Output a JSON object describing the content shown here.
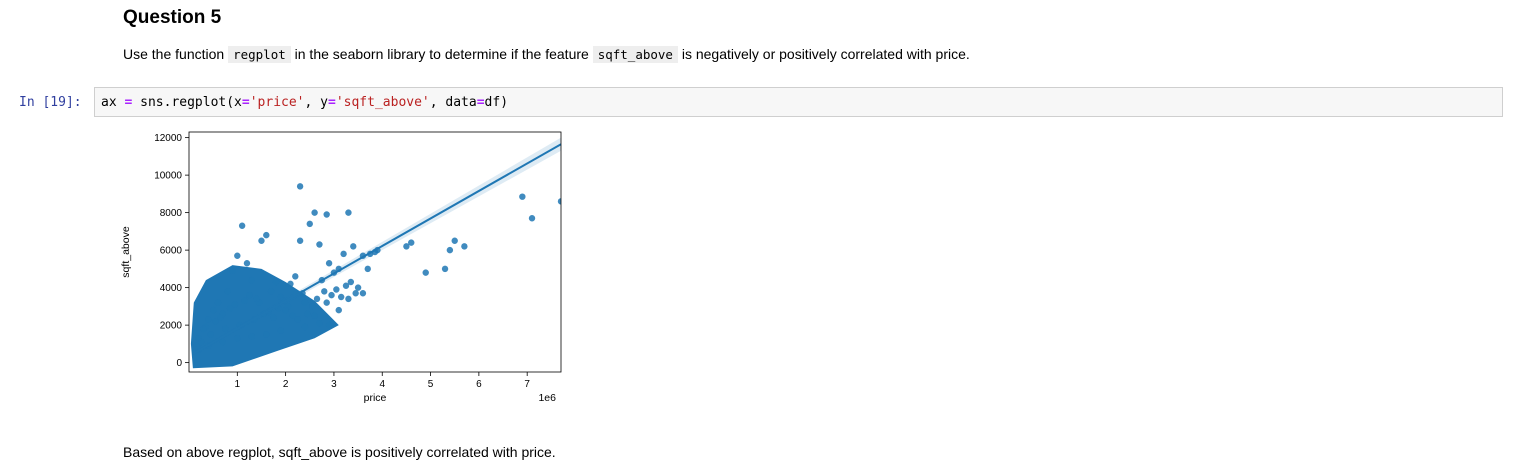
{
  "heading": "Question 5",
  "instruction": {
    "part1": "Use the function ",
    "code1": "regplot",
    "part2": " in the seaborn library to determine if the feature ",
    "code2": "sqft_above",
    "part3": " is negatively or positively correlated with price."
  },
  "cell": {
    "prompt": "In [19]:",
    "code": {
      "t1": "ax ",
      "t2": "=",
      "t3": " sns.regplot(x",
      "t4": "=",
      "t5": "'price'",
      "t6": ", y",
      "t7": "=",
      "t8": "'sqft_above'",
      "t9": ", data",
      "t10": "=",
      "t11": "df)"
    }
  },
  "conclusion": "Based on above regplot, sqft_above is positively correlated with price.",
  "chart_data": {
    "type": "scatter",
    "xlabel": "price",
    "ylabel": "sqft_above",
    "x_offset_label": "1e6",
    "x_ticks": [
      1,
      2,
      3,
      4,
      5,
      6,
      7
    ],
    "y_ticks": [
      0,
      2000,
      4000,
      6000,
      8000,
      10000,
      12000
    ],
    "xlim": [
      0,
      7.7
    ],
    "ylim": [
      -500,
      12300
    ],
    "grid": false,
    "color": "#1f77b4",
    "regression": {
      "x": [
        0.08,
        7.7
      ],
      "y": [
        470,
        11650
      ]
    },
    "x": [
      2.3,
      2.6,
      2.85,
      3.3,
      6.9,
      7.1,
      7.7,
      5.5,
      5.4,
      5.7,
      5.3,
      4.9,
      4.6,
      4.5,
      3.75,
      3.85,
      3.9,
      3.6,
      3.7,
      2.9,
      3.4,
      1.1,
      1.5,
      1.6,
      2.3,
      2.5,
      2.7,
      3.1,
      3.0,
      3.2,
      3.5,
      2.8,
      2.2,
      2.1,
      1.9,
      1.7,
      1.8,
      2.4,
      2.0,
      1.3,
      1.2,
      1.0,
      0.9,
      0.8,
      0.6,
      0.5,
      0.4,
      0.3,
      0.2,
      0.15,
      0.7,
      1.4,
      3.3,
      3.6,
      2.6,
      2.9,
      3.1,
      3.45,
      2.75,
      2.35,
      2.05,
      1.65,
      1.35,
      1.05,
      0.75,
      0.45,
      0.25,
      0.12,
      0.35,
      0.55,
      0.65,
      0.85,
      0.95,
      1.15,
      1.25,
      1.45,
      1.55,
      1.75,
      1.85,
      1.95,
      2.15,
      2.25,
      2.45,
      2.55,
      2.65,
      2.85,
      2.95,
      3.05,
      3.25,
      3.35,
      3.15,
      2.7,
      2.4,
      1.9,
      1.6,
      1.3,
      1.0,
      0.7,
      0.4,
      0.2
    ],
    "y": [
      9400,
      8000,
      7900,
      8000,
      8850,
      7700,
      8600,
      6500,
      6000,
      6200,
      5000,
      4800,
      6400,
      6200,
      5800,
      5900,
      6000,
      5700,
      5000,
      5300,
      6200,
      7300,
      6500,
      6800,
      6500,
      7400,
      6300,
      5000,
      4800,
      5800,
      4000,
      3800,
      4600,
      4200,
      3500,
      3800,
      4300,
      3200,
      2800,
      4400,
      5300,
      5700,
      4900,
      3800,
      3200,
      2800,
      2300,
      1800,
      1300,
      900,
      2600,
      3400,
      3400,
      3700,
      2500,
      2000,
      2800,
      3700,
      4400,
      3700,
      3000,
      2700,
      2300,
      2000,
      1800,
      1500,
      1100,
      700,
      1900,
      2200,
      2400,
      2900,
      3100,
      3300,
      3600,
      3200,
      2600,
      2400,
      2900,
      3300,
      2500,
      2300,
      2600,
      3000,
      3400,
      3200,
      3600,
      3900,
      4100,
      4300,
      3500,
      2100,
      1900,
      1700,
      1500,
      1400,
      1300,
      1100,
      900,
      700
    ]
  }
}
